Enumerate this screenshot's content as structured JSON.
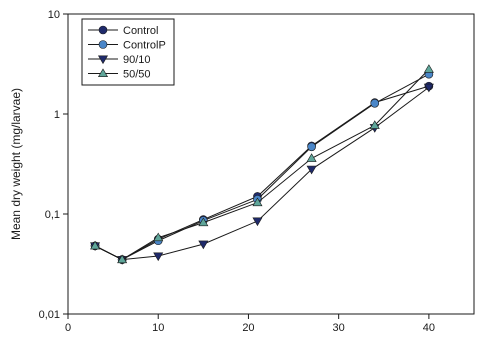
{
  "chart_data": {
    "type": "line",
    "title": "",
    "xlabel": "",
    "ylabel": "Mean dry weight (mg/larvae)",
    "xlim": [
      0,
      45
    ],
    "ylim": [
      0.01,
      10
    ],
    "yscale": "log",
    "grid": false,
    "legend_position": "top-left",
    "x_ticks": [
      "0",
      "10",
      "20",
      "30",
      "40"
    ],
    "y_ticks": [
      "0,01",
      "0,1",
      "1",
      "10"
    ],
    "x": [
      3,
      6,
      10,
      15,
      21,
      27,
      34,
      40
    ],
    "series": [
      {
        "name": "Control",
        "marker": "circle",
        "color": "#1f2a6b",
        "values": [
          0.048,
          0.035,
          0.056,
          0.088,
          0.15,
          0.48,
          1.3,
          1.9
        ]
      },
      {
        "name": "ControlP",
        "marker": "circle",
        "color": "#4a86c8",
        "values": [
          0.048,
          0.035,
          0.054,
          0.086,
          0.14,
          0.47,
          1.28,
          2.5
        ]
      },
      {
        "name": "90/10",
        "marker": "triangle-down",
        "color": "#1f2a6b",
        "values": [
          0.048,
          0.035,
          0.038,
          0.05,
          0.085,
          0.28,
          0.73,
          1.85
        ]
      },
      {
        "name": "50/50",
        "marker": "triangle-up",
        "color": "#5fa69a",
        "values": [
          0.048,
          0.035,
          0.058,
          0.082,
          0.13,
          0.36,
          0.77,
          2.8
        ]
      }
    ]
  }
}
